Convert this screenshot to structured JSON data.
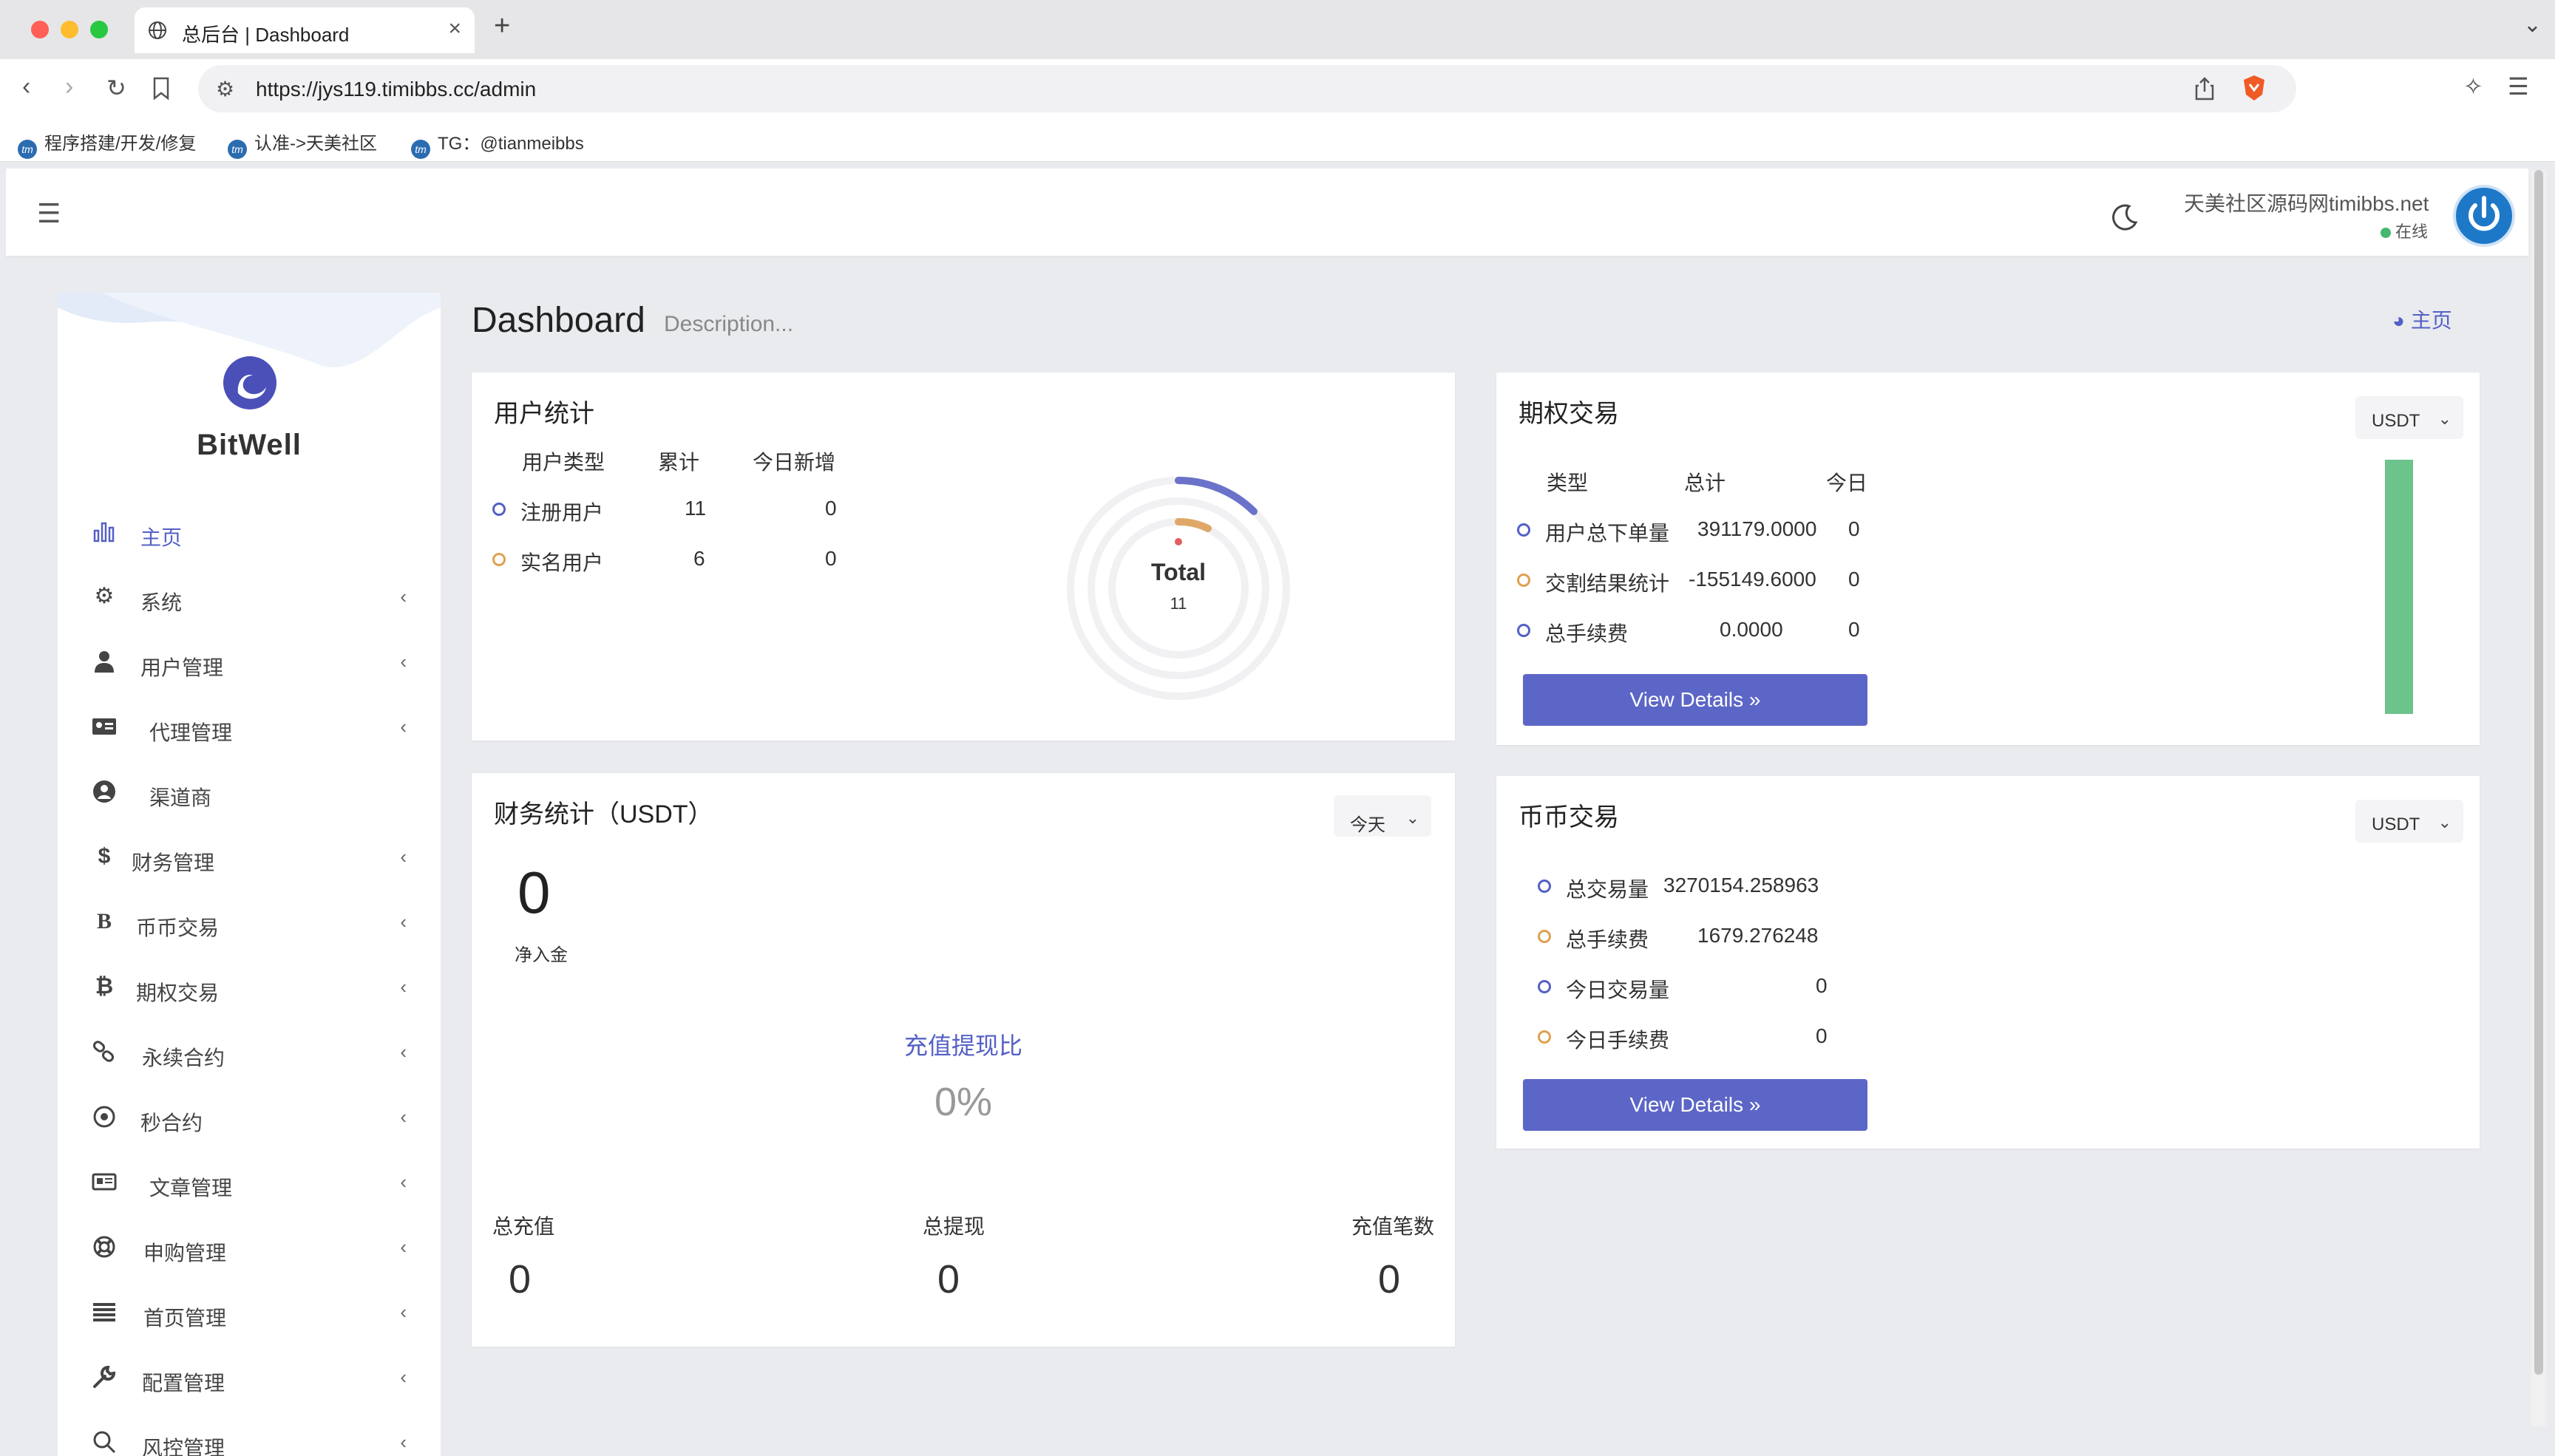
{
  "browser": {
    "tab_title": "总后台 | Dashboard",
    "url": "https://jys119.timibbs.cc/admin",
    "bookmarks": [
      "程序搭建/开发/修复",
      "认准->天美社区",
      "TG：@tianmeibbs"
    ]
  },
  "header": {
    "user_name": "天美社区源码网timibbs.net",
    "user_status": "在线"
  },
  "sidebar": {
    "brand": "BitWell",
    "items": [
      {
        "label": "主页",
        "icon": "bar-chart-icon",
        "active": true
      },
      {
        "label": "系统",
        "icon": "gear-icon"
      },
      {
        "label": "用户管理",
        "icon": "user-tie-icon"
      },
      {
        "label": "代理管理",
        "icon": "id-card-icon"
      },
      {
        "label": "渠道商",
        "icon": "user-circle-icon"
      },
      {
        "label": "财务管理",
        "icon": "dollar-icon"
      },
      {
        "label": "币币交易",
        "icon": "bold-b-icon"
      },
      {
        "label": "期权交易",
        "icon": "bitcoin-icon"
      },
      {
        "label": "永续合约",
        "icon": "link-icon"
      },
      {
        "label": "秒合约",
        "icon": "dot-circle-icon"
      },
      {
        "label": "文章管理",
        "icon": "newspaper-icon"
      },
      {
        "label": "申购管理",
        "icon": "lifebuoy-icon"
      },
      {
        "label": "首页管理",
        "icon": "list-icon"
      },
      {
        "label": "配置管理",
        "icon": "wrench-icon"
      },
      {
        "label": "风控管理",
        "icon": "search-icon"
      }
    ]
  },
  "main": {
    "title": "Dashboard",
    "description": "Description...",
    "breadcrumb": "主页"
  },
  "user_stats": {
    "title": "用户统计",
    "headers": [
      "用户类型",
      "累计",
      "今日新增"
    ],
    "rows": [
      {
        "type": "注册用户",
        "total": "11",
        "today": "0",
        "color": "#5460c5"
      },
      {
        "type": "实名用户",
        "total": "6",
        "today": "0",
        "color": "#e0a050"
      }
    ],
    "donut_label": "Total",
    "donut_value": "11"
  },
  "options_trading": {
    "title": "期权交易",
    "currency": "USDT",
    "headers": [
      "类型",
      "总计",
      "今日"
    ],
    "rows": [
      {
        "type": "用户总下单量",
        "total": "391179.0000",
        "today": "0",
        "color": "#5460c5"
      },
      {
        "type": "交割结果统计",
        "total": "-155149.6000",
        "today": "0",
        "color": "#e0a050"
      },
      {
        "type": "总手续费",
        "total": "0.0000",
        "today": "0",
        "color": "#5460c5"
      }
    ],
    "button": "View Details »",
    "bar_color": "#6cc38c"
  },
  "finance": {
    "title": "财务统计（USDT）",
    "period": "今天",
    "net_value": "0",
    "net_label": "净入金",
    "ratio_label": "充值提现比",
    "ratio_value": "0%",
    "stats": [
      {
        "label": "总充值",
        "value": "0"
      },
      {
        "label": "总提现",
        "value": "0"
      },
      {
        "label": "充值笔数",
        "value": "0"
      }
    ]
  },
  "spot_trading": {
    "title": "币币交易",
    "currency": "USDT",
    "rows": [
      {
        "label": "总交易量",
        "value": "3270154.258963",
        "color": "#5460c5"
      },
      {
        "label": "总手续费",
        "value": "1679.276248",
        "color": "#e0a050"
      },
      {
        "label": "今日交易量",
        "value": "0",
        "color": "#5460c5"
      },
      {
        "label": "今日手续费",
        "value": "0",
        "color": "#e0a050"
      }
    ],
    "button": "View Details »"
  }
}
